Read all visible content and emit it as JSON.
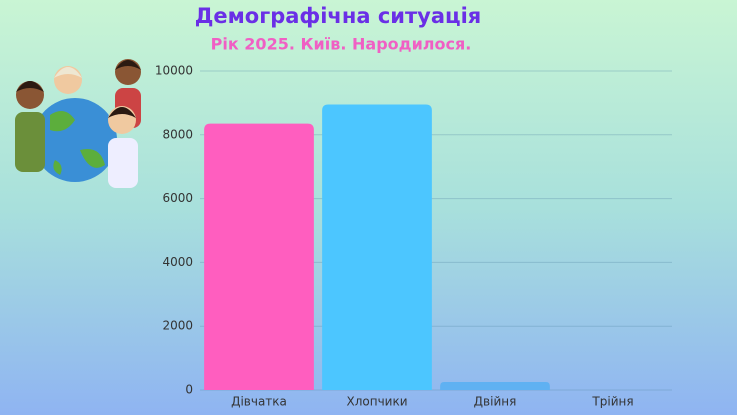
{
  "chart_data": {
    "type": "bar",
    "title": "Демографічна ситуація",
    "subtitle": "Рік 2025. Київ. Народилося.",
    "categories": [
      "Дівчатка",
      "Хлопчики",
      "Двійня",
      "Трійня"
    ],
    "values": [
      8350,
      8950,
      250,
      0
    ],
    "colors": [
      "#ff5ebf",
      "#4cc6ff",
      "#5fb1f2",
      "#7ab4f0"
    ],
    "ylim": [
      0,
      10000
    ],
    "yticks": [
      0,
      2000,
      4000,
      6000,
      8000,
      10000
    ],
    "grid": true
  }
}
